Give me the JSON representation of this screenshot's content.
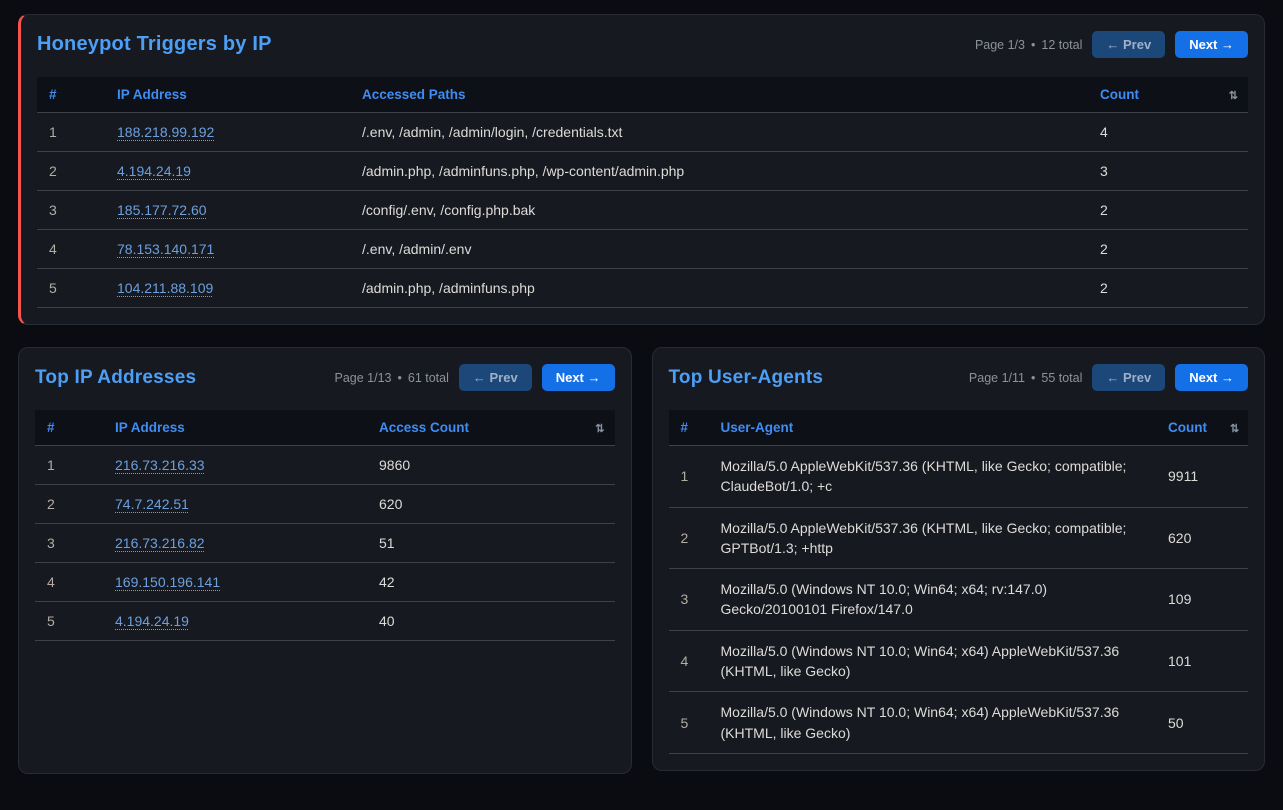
{
  "colors": {
    "accent_red": "#f4534e",
    "title_blue": "#4d9ff5",
    "header_blue": "#3f8cf2",
    "link_blue": "#6ca0dd",
    "next_button": "#1470e6",
    "prev_button": "#1c4879"
  },
  "sort_icon": "⇅",
  "honeypot": {
    "title": "Honeypot Triggers by IP",
    "pagination": {
      "page": "Page 1/3",
      "sep": "•",
      "total": "12 total",
      "prev": "← Prev",
      "next": "Next →"
    },
    "headers": {
      "num": "#",
      "ip": "IP Address",
      "paths": "Accessed Paths",
      "count": "Count"
    },
    "rows": [
      {
        "num": "1",
        "ip": "188.218.99.192",
        "paths": "/.env, /admin, /admin/login, /credentials.txt",
        "count": "4"
      },
      {
        "num": "2",
        "ip": "4.194.24.19",
        "paths": "/admin.php, /adminfuns.php, /wp-content/admin.php",
        "count": "3"
      },
      {
        "num": "3",
        "ip": "185.177.72.60",
        "paths": "/config/.env, /config.php.bak",
        "count": "2"
      },
      {
        "num": "4",
        "ip": "78.153.140.171",
        "paths": "/.env, /admin/.env",
        "count": "2"
      },
      {
        "num": "5",
        "ip": "104.211.88.109",
        "paths": "/admin.php, /adminfuns.php",
        "count": "2"
      }
    ]
  },
  "top_ips": {
    "title": "Top IP Addresses",
    "pagination": {
      "page": "Page 1/13",
      "sep": "•",
      "total": "61 total",
      "prev": "← Prev",
      "next": "Next →"
    },
    "headers": {
      "num": "#",
      "ip": "IP Address",
      "count": "Access Count"
    },
    "rows": [
      {
        "num": "1",
        "ip": "216.73.216.33",
        "count": "9860"
      },
      {
        "num": "2",
        "ip": "74.7.242.51",
        "count": "620"
      },
      {
        "num": "3",
        "ip": "216.73.216.82",
        "count": "51"
      },
      {
        "num": "4",
        "ip": "169.150.196.141",
        "count": "42"
      },
      {
        "num": "5",
        "ip": "4.194.24.19",
        "count": "40"
      }
    ]
  },
  "top_uas": {
    "title": "Top User-Agents",
    "pagination": {
      "page": "Page 1/11",
      "sep": "•",
      "total": "55 total",
      "prev": "← Prev",
      "next": "Next →"
    },
    "headers": {
      "num": "#",
      "ua": "User-Agent",
      "count": "Count"
    },
    "rows": [
      {
        "num": "1",
        "ua": "Mozilla/5.0 AppleWebKit/537.36 (KHTML, like Gecko; compatible; ClaudeBot/1.0; +c",
        "count": "9911"
      },
      {
        "num": "2",
        "ua": "Mozilla/5.0 AppleWebKit/537.36 (KHTML, like Gecko; compatible; GPTBot/1.3; +http",
        "count": "620"
      },
      {
        "num": "3",
        "ua": "Mozilla/5.0 (Windows NT 10.0; Win64; x64; rv:147.0) Gecko/20100101 Firefox/147.0",
        "count": "109"
      },
      {
        "num": "4",
        "ua": "Mozilla/5.0 (Windows NT 10.0; Win64; x64) AppleWebKit/537.36 (KHTML, like Gecko)",
        "count": "101"
      },
      {
        "num": "5",
        "ua": "Mozilla/5.0 (Windows NT 10.0; Win64; x64) AppleWebKit/537.36 (KHTML, like Gecko)",
        "count": "50"
      }
    ]
  }
}
